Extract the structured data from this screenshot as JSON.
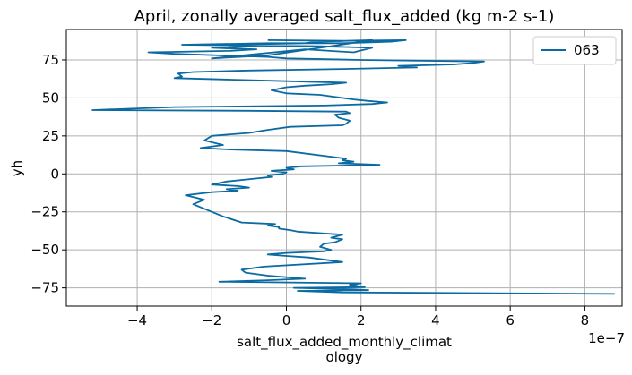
{
  "colors": {
    "series": "#0a6aa1",
    "grid": "#b0b0b0",
    "axes": "#000000",
    "background": "#ffffff"
  },
  "chart_data": {
    "type": "line",
    "title": "April, zonally averaged salt_flux_added (kg m-2 s-1)",
    "xlabel_line1": "salt_flux_added_monthly_climat",
    "xlabel_line2": "ology",
    "ylabel": "yh",
    "x_offset_text": "1e−7",
    "xlim": [
      -5.9,
      9.0
    ],
    "ylim": [
      -87,
      95
    ],
    "grid": true,
    "legend_position": "top-right",
    "x_ticks": [
      -4,
      -2,
      0,
      2,
      4,
      6,
      8
    ],
    "x_tick_labels": [
      "−4",
      "−2",
      "0",
      "2",
      "4",
      "6",
      "8"
    ],
    "y_ticks": [
      -75,
      -50,
      -25,
      0,
      25,
      50,
      75
    ],
    "y_tick_labels": [
      "−75",
      "−50",
      "−25",
      "0",
      "25",
      "50",
      "75"
    ],
    "series": [
      {
        "name": "063",
        "x": [
          8.8,
          1.5,
          0.3,
          2.2,
          1.8,
          0.2,
          2.1,
          1.7,
          2.0,
          -1.8,
          -0.5,
          0.5,
          -0.5,
          -1.1,
          -1.2,
          -0.6,
          1.5,
          0.6,
          0.0,
          -0.5,
          0.0,
          1.0,
          1.2,
          0.9,
          1.0,
          1.3,
          1.5,
          1.2,
          1.5,
          0.9,
          0.3,
          0.1,
          -0.2,
          -0.2,
          -0.5,
          -0.3,
          -1.2,
          -1.7,
          -2.5,
          -2.2,
          -2.7,
          -2.0,
          -1.3,
          -1.6,
          -1.0,
          -1.3,
          -2.0,
          -1.6,
          -0.8,
          -0.4,
          -0.5,
          -0.1,
          0.0,
          -0.4,
          0.2,
          0.0,
          0.4,
          1.5,
          2.5,
          1.4,
          1.8,
          1.5,
          1.6,
          0.0,
          -1.5,
          -2.3,
          -1.7,
          -2.2,
          -2.0,
          -1.0,
          -0.5,
          0.1,
          1.5,
          1.6,
          1.7,
          1.4,
          1.3,
          1.7,
          1.6,
          -1.0,
          -5.2,
          -3.0,
          1.0,
          2.3,
          2.7,
          2.2,
          1.8,
          1.5,
          0.9,
          0.0,
          -0.4,
          0.0,
          0.5,
          1.2,
          1.6,
          0.0,
          -1.5,
          -3.0,
          -2.8,
          -2.9,
          -2.5,
          -1.0,
          1.5,
          3.5,
          3.0,
          4.5,
          5.0,
          5.3,
          2.0,
          0.0,
          -0.5,
          -1.8,
          -3.0,
          -3.7,
          -1.5,
          -0.8,
          -2.0,
          -0.8,
          -1.5,
          0.5,
          0.8,
          2.3,
          -0.5,
          -2.0,
          0.5,
          1.8,
          2.3,
          0.9,
          -2.8,
          -0.5,
          1.5,
          2.8,
          3.2,
          1.5,
          -0.5
        ],
        "y": [
          -79,
          -78,
          -77,
          -76.5,
          -76,
          -75,
          -74.5,
          -73,
          -72,
          -71,
          -70,
          -69,
          -67,
          -65,
          -63,
          -61,
          -58,
          -55,
          -54,
          -53,
          -52,
          -51,
          -50,
          -48,
          -46,
          -45,
          -43,
          -42,
          -40,
          -39,
          -38,
          -37,
          -36,
          -35,
          -34,
          -33,
          -32,
          -28,
          -20,
          -17,
          -14,
          -12,
          -11,
          -10,
          -9,
          -8,
          -7,
          -5,
          -3,
          -2,
          -1,
          0,
          1,
          2,
          3,
          4,
          5,
          5.5,
          6,
          7,
          8,
          9,
          10,
          15,
          16,
          17,
          19,
          22,
          25,
          27,
          29,
          31,
          32,
          33,
          35,
          37,
          39,
          40,
          41,
          41.5,
          42,
          44,
          45,
          46,
          47,
          48,
          49,
          50,
          52,
          53,
          55,
          57,
          58,
          59,
          60,
          61,
          62,
          63,
          64,
          66,
          67,
          68,
          69,
          70,
          71,
          72,
          73,
          74,
          75,
          76,
          77,
          78,
          79,
          80,
          81,
          82,
          83,
          84,
          85,
          86,
          87,
          88,
          78,
          76,
          82,
          80,
          83,
          84,
          85,
          86,
          86,
          87,
          88,
          87.5,
          88
        ]
      }
    ]
  }
}
